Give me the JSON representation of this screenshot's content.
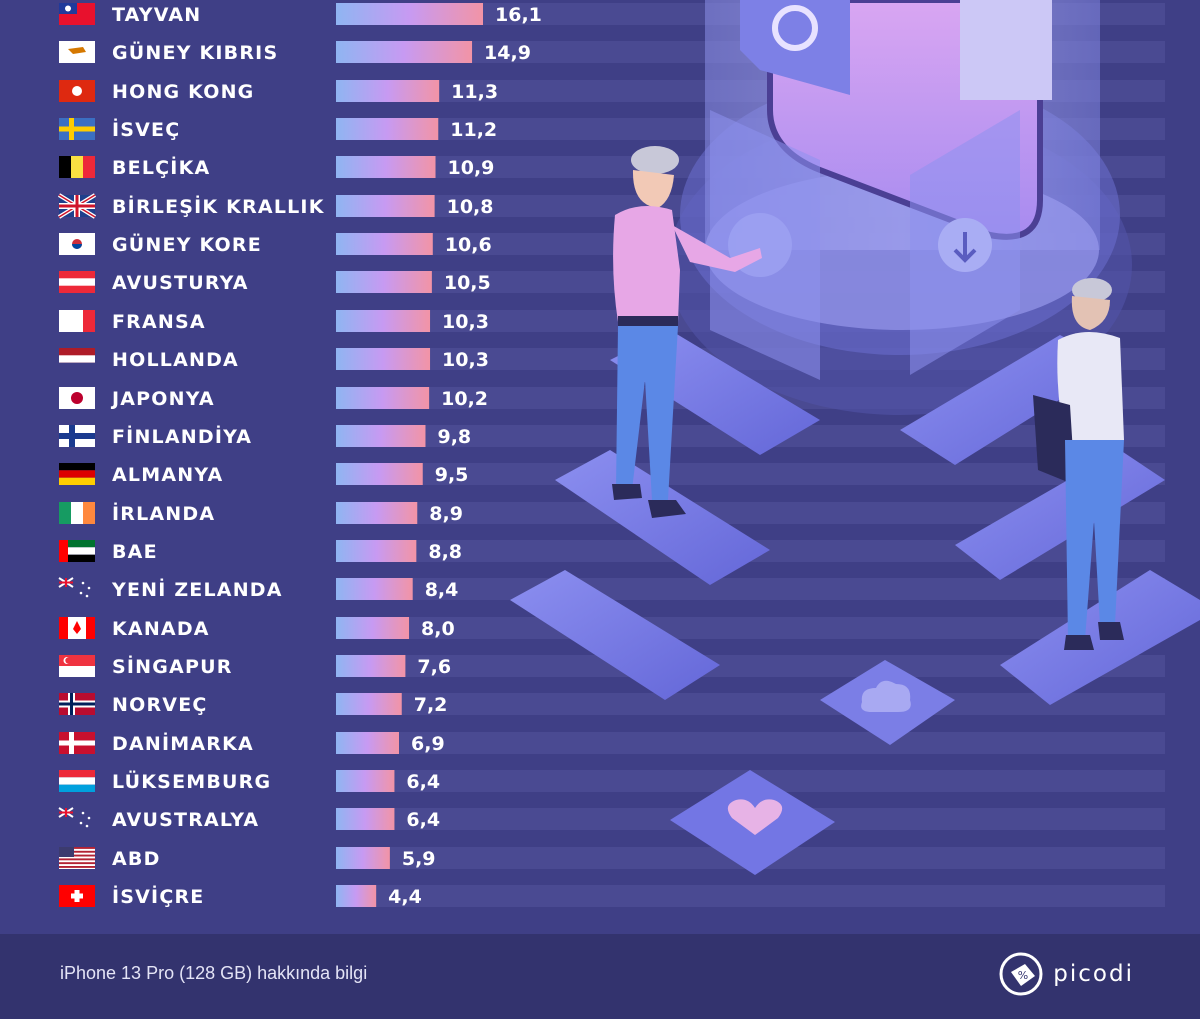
{
  "chart_data": {
    "type": "bar",
    "orientation": "horizontal",
    "categories": [
      "TAYVAN",
      "GÜNEY KIBRIS",
      "HONG KONG",
      "İSVEÇ",
      "BELÇİKA",
      "BİRLEŞİK KRALLIK",
      "GÜNEY KORE",
      "AVUSTURYA",
      "FRANSA",
      "HOLLANDA",
      "JAPONYA",
      "FİNLANDİYA",
      "ALMANYA",
      "İRLANDA",
      "BAE",
      "YENİ ZELANDA",
      "KANADA",
      "SİNGAPUR",
      "NORVEÇ",
      "DANİMARKA",
      "LÜKSEMBURG",
      "AVUSTRALYA",
      "ABD",
      "İSVİÇRE"
    ],
    "values": [
      16.1,
      14.9,
      11.3,
      11.2,
      10.9,
      10.8,
      10.6,
      10.5,
      10.3,
      10.3,
      10.2,
      9.8,
      9.5,
      8.9,
      8.8,
      8.4,
      8.0,
      7.6,
      7.2,
      6.9,
      6.4,
      6.4,
      5.9,
      4.4
    ],
    "value_labels": [
      "16,1",
      "14,9",
      "11,3",
      "11,2",
      "10,9",
      "10,8",
      "10,6",
      "10,5",
      "10,3",
      "10,3",
      "10,2",
      "9,8",
      "9,5",
      "8,9",
      "8,8",
      "8,4",
      "8,0",
      "7,6",
      "7,2",
      "6,9",
      "6,4",
      "6,4",
      "5,9",
      "4,4"
    ],
    "flags": [
      "tw",
      "cy",
      "hk",
      "se",
      "be",
      "gb",
      "kr",
      "at",
      "fr",
      "nl",
      "jp",
      "fi",
      "de",
      "ie",
      "ae",
      "nz",
      "ca",
      "sg",
      "no",
      "dk",
      "lu",
      "au",
      "us",
      "ch"
    ],
    "title": "",
    "xlabel": "",
    "ylabel": "",
    "xlim": [
      0,
      16.1
    ],
    "colors": {
      "bar_start": "#8fb5f2",
      "bar_mid": "#c79af2",
      "bar_end": "#f294a6",
      "track": "#4a4a92",
      "text": "#ffffff"
    }
  },
  "footer": {
    "note": "iPhone 13 Pro (128 GB) hakkında bilgi",
    "brand": "picodi",
    "brand_icon": "price-tag-percent-icon"
  }
}
